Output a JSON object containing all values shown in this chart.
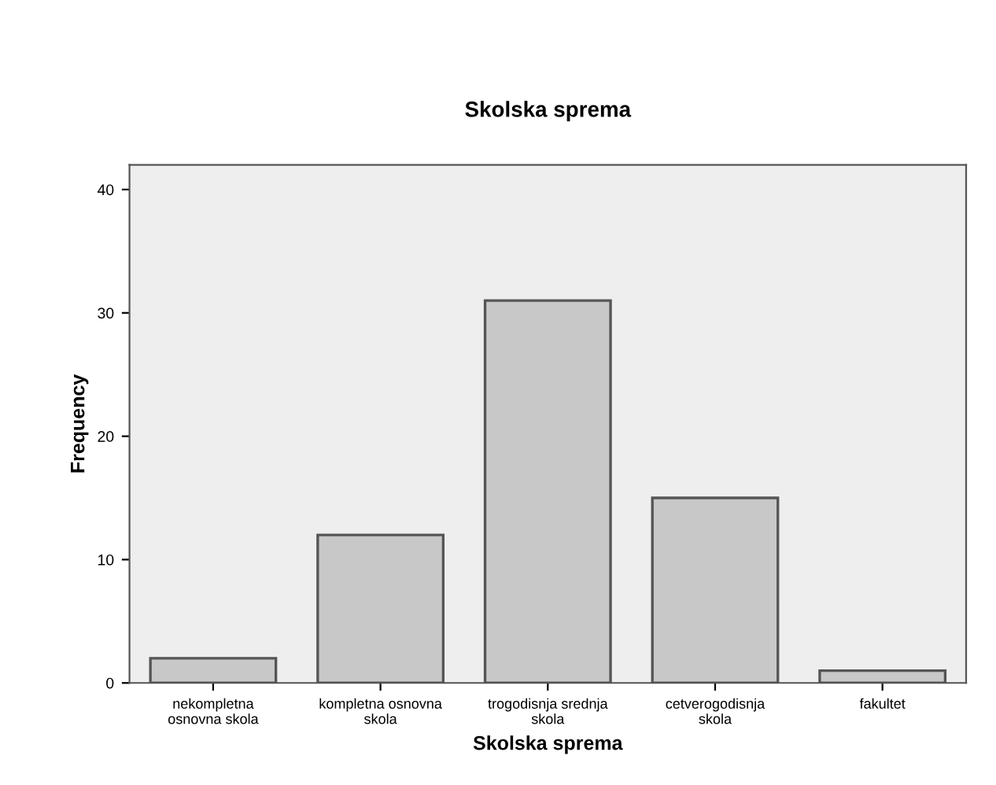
{
  "chart_data": {
    "type": "bar",
    "title": "Skolska sprema",
    "xlabel": "Skolska sprema",
    "ylabel": "Frequency",
    "categories": [
      "nekompletna\nosnovna skola",
      "kompletna osnovna\nskola",
      "trogodisnja srednja\nskola",
      "cetverogodisnja\nskola",
      "fakultet"
    ],
    "values": [
      2,
      12,
      31,
      15,
      1
    ],
    "color": "#c8c8c8",
    "ylim": [
      0,
      42
    ],
    "yticks": [
      0,
      10,
      20,
      30,
      40
    ],
    "grid": false
  }
}
